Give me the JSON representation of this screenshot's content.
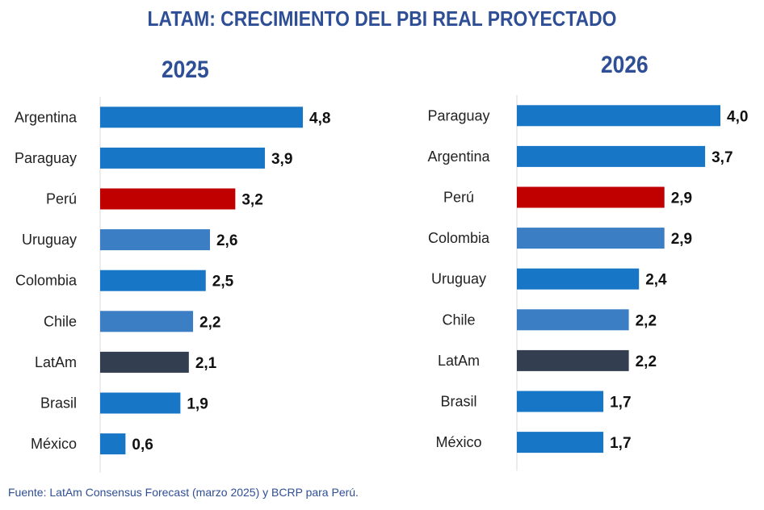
{
  "title": "LATAM: CRECIMIENTO DEL PBI REAL PROYECTADO",
  "source": "Fuente: LatAm Consensus Forecast (marzo 2025) y BCRP para Perú.",
  "colors": {
    "default": "#1776C6",
    "light": "#3B7EC4",
    "peru": "#C00000",
    "latam": "#333F50",
    "title": "#2E4E96"
  },
  "chart_data": [
    {
      "type": "bar",
      "orientation": "horizontal",
      "title": "2025",
      "categories": [
        "Argentina",
        "Paraguay",
        "Perú",
        "Uruguay",
        "Colombia",
        "Chile",
        "LatAm",
        "Brasil",
        "México"
      ],
      "values": [
        4.8,
        3.9,
        3.2,
        2.6,
        2.5,
        2.2,
        2.1,
        1.9,
        0.6
      ],
      "labels": [
        "4,8",
        "3,9",
        "3,2",
        "2,6",
        "2,5",
        "2,2",
        "2,1",
        "1,9",
        "0,6"
      ],
      "bar_colors": [
        "default",
        "default",
        "peru",
        "light",
        "default",
        "light",
        "latam",
        "default",
        "default"
      ]
    },
    {
      "type": "bar",
      "orientation": "horizontal",
      "title": "2026",
      "categories": [
        "Paraguay",
        "Argentina",
        "Perú",
        "Colombia",
        "Uruguay",
        "Chile",
        "LatAm",
        "Brasil",
        "México"
      ],
      "values": [
        4.0,
        3.7,
        2.9,
        2.9,
        2.4,
        2.2,
        2.2,
        1.7,
        1.7
      ],
      "labels": [
        "4,0",
        "3,7",
        "2,9",
        "2,9",
        "2,4",
        "2,2",
        "2,2",
        "1,7",
        "1,7"
      ],
      "bar_colors": [
        "default",
        "default",
        "peru",
        "light",
        "default",
        "light",
        "latam",
        "default",
        "default"
      ]
    }
  ]
}
